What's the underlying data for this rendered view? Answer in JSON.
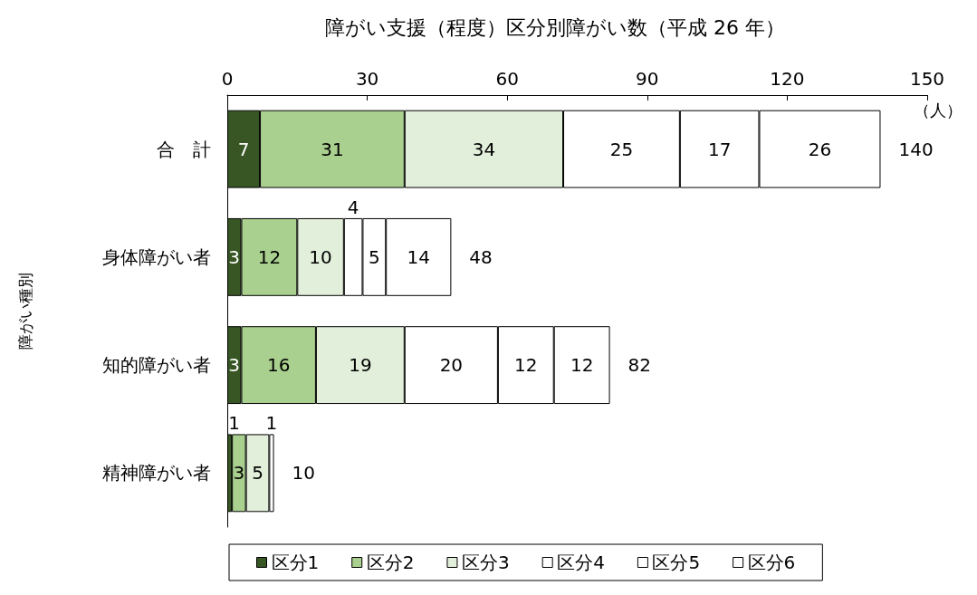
{
  "chart_data": {
    "type": "bar",
    "orientation": "horizontal",
    "stacked": true,
    "title": "障がい支援（程度）区分別障がい数（平成 26 年）",
    "ylabel": "障がい種別",
    "categories": [
      "合　計",
      "身体障がい者",
      "知的障がい者",
      "精神障がい者"
    ],
    "series": [
      {
        "name": "区分1",
        "color": "#375623",
        "values": [
          7,
          3,
          3,
          1
        ]
      },
      {
        "name": "区分2",
        "color": "#a9d08e",
        "values": [
          31,
          12,
          16,
          3
        ]
      },
      {
        "name": "区分3",
        "color": "#e2efda",
        "values": [
          34,
          10,
          19,
          5
        ]
      },
      {
        "name": "区分4",
        "color": "#ffffff",
        "values": [
          25,
          4,
          20,
          1
        ]
      },
      {
        "name": "区分5",
        "color": "#ffffff",
        "values": [
          17,
          5,
          12,
          null
        ]
      },
      {
        "name": "区分6",
        "color": "#ffffff",
        "values": [
          26,
          14,
          12,
          null
        ]
      }
    ],
    "xlim": [
      0,
      150
    ],
    "xticks": [
      0,
      30,
      60,
      90,
      120,
      150
    ],
    "grid": false,
    "legend": "bottom",
    "data_labels": true,
    "totals": [
      "140",
      "48",
      "82",
      "10"
    ],
    "annotations": [
      "（人）"
    ]
  }
}
